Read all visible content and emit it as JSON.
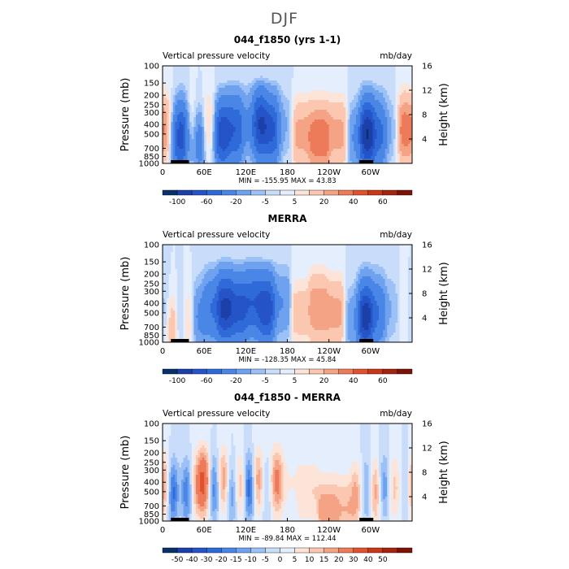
{
  "figure": {
    "title": "DJF"
  },
  "chart_data": [
    {
      "type": "heatmap",
      "title": "044_f1850 (yrs 1-1)",
      "left_label": "Vertical pressure velocity",
      "right_label": "mb/day",
      "ylabel": "Pressure (mb)",
      "ylabel_right": "Height (km)",
      "x_ticks": [
        "0",
        "60E",
        "120E",
        "180",
        "120W",
        "60W"
      ],
      "y_ticks": [
        "100",
        "150",
        "200",
        "250",
        "300",
        "400",
        "500",
        "700",
        "850",
        "1000"
      ],
      "y_right_ticks": [
        "16",
        "12",
        "8",
        "4"
      ],
      "stats": "MIN = -155.95   MAX =  43.83",
      "colorbar_labels": [
        "-100",
        "-60",
        "-20",
        "-5",
        "5",
        "20",
        "40",
        "60"
      ],
      "color_levels": [
        -120,
        -100,
        -80,
        -60,
        -40,
        -20,
        -10,
        -5,
        0,
        5,
        10,
        20,
        30,
        40,
        50,
        60,
        70
      ],
      "colors": [
        "#08306b",
        "#1c3fa8",
        "#2553c8",
        "#2f6ad9",
        "#4a86e6",
        "#6ea2ef",
        "#9cc1f6",
        "#c9ddfb",
        "#e4eefd",
        "#fce4d8",
        "#fbc7b0",
        "#f5a385",
        "#ed7b5a",
        "#e0522f",
        "#c83818",
        "#a32410",
        "#7d1208"
      ],
      "profiles": [
        {
          "lon": 5,
          "peak": 30,
          "p": 450
        },
        {
          "lon": 20,
          "peak": -40,
          "p": 600
        },
        {
          "lon": 30,
          "peak": -130,
          "p": 500
        },
        {
          "lon": 38,
          "peak": 45,
          "p": 450
        },
        {
          "lon": 50,
          "peak": -40,
          "p": 600
        },
        {
          "lon": 68,
          "peak": 15,
          "p": 400
        },
        {
          "lon": 85,
          "peak": -80,
          "p": 500
        },
        {
          "lon": 105,
          "peak": -60,
          "p": 450
        },
        {
          "lon": 125,
          "peak": -20,
          "p": 400
        },
        {
          "lon": 140,
          "peak": -90,
          "p": 400
        },
        {
          "lon": 158,
          "peak": -70,
          "p": 450
        },
        {
          "lon": 175,
          "peak": -10,
          "p": 400
        },
        {
          "lon": 200,
          "peak": 25,
          "p": 500
        },
        {
          "lon": 225,
          "peak": 40,
          "p": 550
        },
        {
          "lon": 255,
          "peak": 25,
          "p": 500
        },
        {
          "lon": 278,
          "peak": -20,
          "p": 550
        },
        {
          "lon": 295,
          "peak": -110,
          "p": 500
        },
        {
          "lon": 312,
          "peak": -50,
          "p": 500
        },
        {
          "lon": 330,
          "peak": -10,
          "p": 450
        },
        {
          "lon": 350,
          "peak": 40,
          "p": 450
        }
      ]
    },
    {
      "type": "heatmap",
      "title": "MERRA",
      "left_label": "Vertical pressure velocity",
      "right_label": "mb/day",
      "ylabel": "Pressure (mb)",
      "ylabel_right": "Height (km)",
      "x_ticks": [
        "0",
        "60E",
        "120E",
        "180",
        "120W",
        "60W"
      ],
      "y_ticks": [
        "100",
        "150",
        "200",
        "250",
        "300",
        "400",
        "500",
        "700",
        "850",
        "1000"
      ],
      "y_right_ticks": [
        "16",
        "12",
        "8",
        "4"
      ],
      "stats": "MIN = -128.35   MAX =  45.84",
      "colorbar_labels": [
        "-100",
        "-60",
        "-20",
        "-5",
        "5",
        "20",
        "40",
        "60"
      ],
      "color_levels": [
        -120,
        -100,
        -80,
        -60,
        -40,
        -20,
        -10,
        -5,
        0,
        5,
        10,
        20,
        30,
        40,
        50,
        60,
        70
      ],
      "colors": [
        "#08306b",
        "#1c3fa8",
        "#2553c8",
        "#2f6ad9",
        "#4a86e6",
        "#6ea2ef",
        "#9cc1f6",
        "#c9ddfb",
        "#e4eefd",
        "#fce4d8",
        "#fbc7b0",
        "#f5a385",
        "#ed7b5a",
        "#e0522f",
        "#c83818",
        "#a32410",
        "#7d1208"
      ],
      "profiles": [
        {
          "lon": 5,
          "peak": -15,
          "p": 500
        },
        {
          "lon": 15,
          "peak": 40,
          "p": 650
        },
        {
          "lon": 25,
          "peak": -30,
          "p": 600
        },
        {
          "lon": 35,
          "peak": 25,
          "p": 600
        },
        {
          "lon": 50,
          "peak": -25,
          "p": 550
        },
        {
          "lon": 70,
          "peak": -40,
          "p": 450
        },
        {
          "lon": 90,
          "peak": -90,
          "p": 450
        },
        {
          "lon": 110,
          "peak": -70,
          "p": 450
        },
        {
          "lon": 130,
          "peak": -60,
          "p": 400
        },
        {
          "lon": 150,
          "peak": -80,
          "p": 450
        },
        {
          "lon": 170,
          "peak": -20,
          "p": 400
        },
        {
          "lon": 200,
          "peak": 15,
          "p": 500
        },
        {
          "lon": 225,
          "peak": 30,
          "p": 450
        },
        {
          "lon": 250,
          "peak": 25,
          "p": 500
        },
        {
          "lon": 275,
          "peak": -15,
          "p": 600
        },
        {
          "lon": 293,
          "peak": -100,
          "p": 550
        },
        {
          "lon": 310,
          "peak": -40,
          "p": 500
        },
        {
          "lon": 330,
          "peak": -10,
          "p": 450
        },
        {
          "lon": 350,
          "peak": 5,
          "p": 450
        }
      ]
    },
    {
      "type": "heatmap",
      "title": "044_f1850 - MERRA",
      "left_label": "Vertical pressure velocity",
      "right_label": "mb/day",
      "ylabel": "Pressure (mb)",
      "ylabel_right": "Height (km)",
      "x_ticks": [
        "0",
        "60E",
        "120E",
        "180",
        "120W",
        "60W"
      ],
      "y_ticks": [
        "100",
        "150",
        "200",
        "250",
        "300",
        "400",
        "500",
        "700",
        "850",
        "1000"
      ],
      "y_right_ticks": [
        "16",
        "12",
        "8",
        "4"
      ],
      "stats": "MIN = -89.84   MAX = 112.44",
      "colorbar_labels": [
        "-50",
        "-40",
        "-30",
        "-20",
        "-15",
        "-10",
        "-5",
        "0",
        "5",
        "10",
        "15",
        "20",
        "30",
        "40",
        "50"
      ],
      "color_levels": [
        -60,
        -50,
        -40,
        -30,
        -20,
        -15,
        -10,
        -5,
        0,
        5,
        10,
        15,
        20,
        30,
        40,
        50,
        60
      ],
      "colors": [
        "#08306b",
        "#1c3fa8",
        "#2553c8",
        "#2f6ad9",
        "#4a86e6",
        "#6ea2ef",
        "#9cc1f6",
        "#c9ddfb",
        "#e4eefd",
        "#fce4d8",
        "#fbc7b0",
        "#f5a385",
        "#ed7b5a",
        "#e0522f",
        "#c83818",
        "#a32410",
        "#7d1208"
      ],
      "profiles": [
        {
          "lon": 5,
          "peak": 40,
          "p": 450
        },
        {
          "lon": 15,
          "peak": -60,
          "p": 500
        },
        {
          "lon": 25,
          "peak": 30,
          "p": 500
        },
        {
          "lon": 33,
          "peak": -50,
          "p": 500
        },
        {
          "lon": 45,
          "peak": 20,
          "p": 450
        },
        {
          "lon": 60,
          "peak": 40,
          "p": 400
        },
        {
          "lon": 75,
          "peak": -30,
          "p": 450
        },
        {
          "lon": 88,
          "peak": 35,
          "p": 400
        },
        {
          "lon": 100,
          "peak": -30,
          "p": 500
        },
        {
          "lon": 112,
          "peak": 30,
          "p": 450
        },
        {
          "lon": 125,
          "peak": -40,
          "p": 450
        },
        {
          "lon": 138,
          "peak": 35,
          "p": 400
        },
        {
          "lon": 150,
          "peak": -20,
          "p": 450
        },
        {
          "lon": 162,
          "peak": 30,
          "p": 400
        },
        {
          "lon": 180,
          "peak": 5,
          "p": 400
        },
        {
          "lon": 210,
          "peak": 10,
          "p": 500
        },
        {
          "lon": 240,
          "peak": 20,
          "p": 800
        },
        {
          "lon": 265,
          "peak": 15,
          "p": 750
        },
        {
          "lon": 285,
          "peak": 25,
          "p": 550
        },
        {
          "lon": 295,
          "peak": -40,
          "p": 500
        },
        {
          "lon": 305,
          "peak": 40,
          "p": 500
        },
        {
          "lon": 318,
          "peak": -20,
          "p": 450
        },
        {
          "lon": 335,
          "peak": 15,
          "p": 450
        },
        {
          "lon": 350,
          "peak": -10,
          "p": 450
        }
      ]
    }
  ]
}
